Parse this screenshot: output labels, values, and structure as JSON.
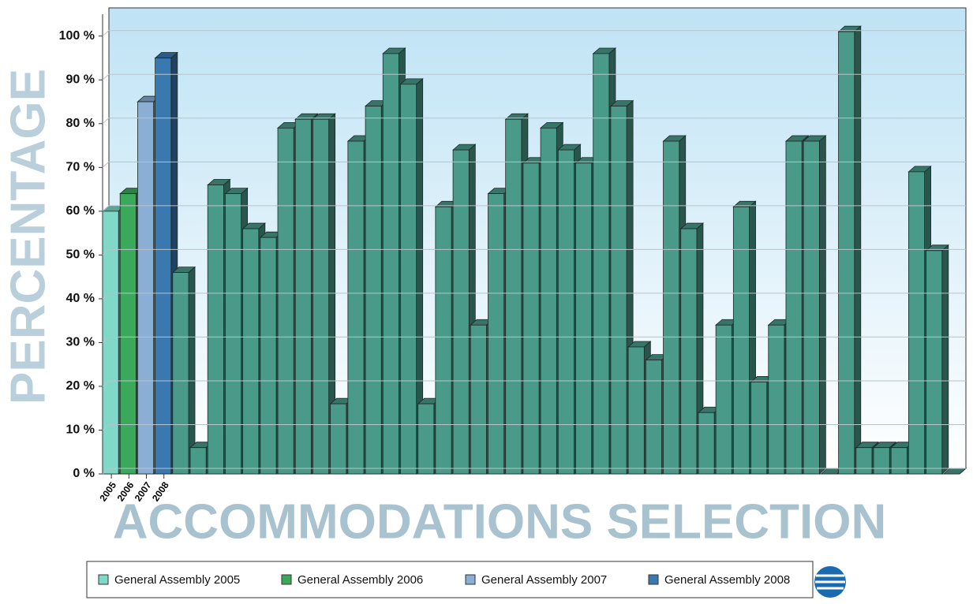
{
  "chart_data": {
    "type": "bar",
    "y_label": "PERCENTAGE",
    "x_label": "ACCOMMODATIONS SELECTION",
    "categories": [
      "2005",
      "2006",
      "2007",
      "2008",
      null,
      null,
      null,
      null,
      null,
      null,
      null,
      null,
      null,
      null,
      null,
      null,
      null,
      null,
      null,
      null,
      null,
      null,
      null,
      null,
      null,
      null,
      null,
      null,
      null,
      null,
      null,
      null,
      null,
      null,
      null,
      null,
      null,
      null,
      null,
      null,
      null,
      null,
      null,
      null,
      null,
      null,
      null,
      null,
      null
    ],
    "series": [
      {
        "name": "General Assembly 2005",
        "color": "#7fd8c8",
        "values": [
          60,
          null,
          null,
          null,
          null,
          null,
          null,
          null,
          null,
          null,
          null,
          null,
          null,
          null,
          null,
          null,
          null,
          null,
          null,
          null,
          null,
          null,
          null,
          null,
          null,
          null,
          null,
          null,
          null,
          null,
          null,
          null,
          null,
          null,
          null,
          null,
          null,
          null,
          null,
          null,
          null,
          null,
          null,
          null,
          null,
          null,
          null,
          null,
          null
        ]
      },
      {
        "name": "General Assembly 2006",
        "color": "#3aaa5a",
        "values": [
          null,
          64,
          null,
          null,
          null,
          null,
          null,
          null,
          null,
          null,
          null,
          null,
          null,
          null,
          null,
          null,
          null,
          null,
          null,
          null,
          null,
          null,
          null,
          null,
          null,
          null,
          null,
          null,
          null,
          null,
          null,
          null,
          null,
          null,
          null,
          null,
          null,
          null,
          null,
          null,
          null,
          null,
          null,
          null,
          null,
          null,
          null,
          null,
          null
        ]
      },
      {
        "name": "General Assembly 2007",
        "color": "#8aaed4",
        "values": [
          null,
          null,
          85,
          null,
          null,
          null,
          null,
          null,
          null,
          null,
          null,
          null,
          null,
          null,
          null,
          null,
          null,
          null,
          null,
          null,
          null,
          null,
          null,
          null,
          null,
          null,
          null,
          null,
          null,
          null,
          null,
          null,
          null,
          null,
          null,
          null,
          null,
          null,
          null,
          null,
          null,
          null,
          null,
          null,
          null,
          null,
          null,
          null,
          null
        ]
      },
      {
        "name": "General Assembly 2008",
        "color": "#3a78b0",
        "values": [
          null,
          null,
          null,
          95,
          null,
          null,
          null,
          null,
          null,
          null,
          null,
          null,
          null,
          null,
          null,
          null,
          null,
          null,
          null,
          null,
          null,
          null,
          null,
          null,
          null,
          null,
          null,
          null,
          null,
          null,
          null,
          null,
          null,
          null,
          null,
          null,
          null,
          null,
          null,
          null,
          null,
          null,
          null,
          null,
          null,
          null,
          null,
          null,
          null
        ]
      },
      {
        "color": "#4a9a8a",
        "values": [
          null,
          null,
          null,
          null,
          46,
          6,
          66,
          64,
          56,
          54,
          79,
          81,
          81,
          16,
          76,
          84,
          96,
          89,
          16,
          61,
          74,
          34,
          64,
          81,
          71,
          79,
          74,
          71,
          96,
          84,
          29,
          26,
          76,
          56,
          14,
          34,
          61,
          21,
          34,
          76,
          76,
          0,
          101,
          6,
          6,
          6,
          69,
          51,
          0
        ]
      }
    ],
    "ylim": [
      0,
      105
    ],
    "yticks": [
      {
        "value": 0,
        "label": "0 %"
      },
      {
        "value": 10,
        "label": "10 %"
      },
      {
        "value": 20,
        "label": "20 %"
      },
      {
        "value": 30,
        "label": "30 %"
      },
      {
        "value": 40,
        "label": "40 %"
      },
      {
        "value": 50,
        "label": "50 %"
      },
      {
        "value": 60,
        "label": "60 %"
      },
      {
        "value": 70,
        "label": "70 %"
      },
      {
        "value": 80,
        "label": "80 %"
      },
      {
        "value": 90,
        "label": "90 %"
      },
      {
        "value": 100,
        "label": "100 %"
      }
    ],
    "grid": true,
    "legend": "bottom"
  }
}
